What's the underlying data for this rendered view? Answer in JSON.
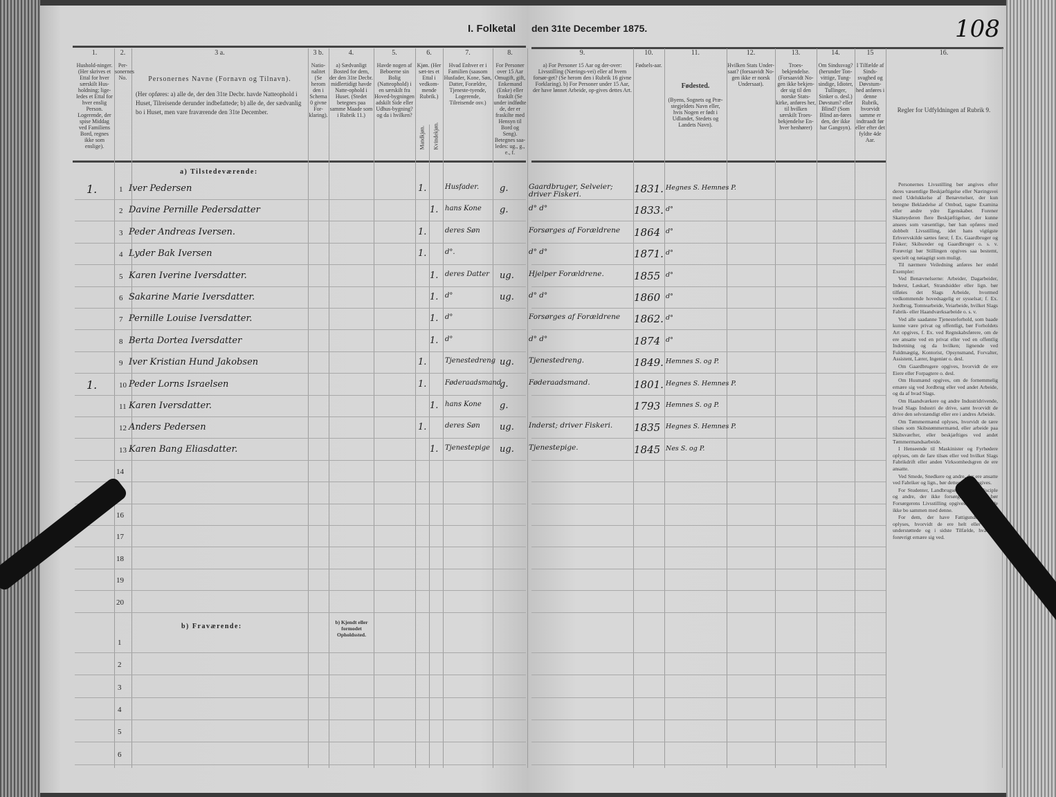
{
  "header": {
    "title_left": "I. Folketal",
    "title_right": "den 31te December 1875.",
    "page_number": "108"
  },
  "columns": {
    "c1": {
      "num": "1.",
      "text": "Hushold-ninger. (Her skrives et Ettal for hver særskilt Hus-holdning; lige-ledes et Ettal for hver enslig Person. Logerende, der spise Middag ved Familiens Bord, regnes ikke som enslige)."
    },
    "c2": {
      "num": "2.",
      "text": "Per-sonernes No."
    },
    "c3a": {
      "num": "3 a.",
      "title": "Personernes Navne (Fornavn og Tilnavn).",
      "text": "(Her opføres: a) alle de, der den 31te Decbr. havde Natteophold i Huset, Tilreisende derunder indbefattede; b) alle de, der sædvanlig bo i Huset, men vare fraværende den 31te December."
    },
    "c3b": {
      "num": "3 b.",
      "text": "Natio-nalitet (Se herom den i Schema 0 givne For-klaring)."
    },
    "c4": {
      "num": "4.",
      "text": "a) Sædvanligt Bosted for dem, der den 31te Decbr. midlertidigt havde Natte-ophold i Huset. (Stedet betegnes paa samme Maade som i Rubrik 11.)"
    },
    "c5": {
      "num": "5.",
      "text": "Havde nogen af Beboerne sin Bolig (Natteophold) i en særskilt fra Hoved-bygningen adskilt Side eller Udhus-bygning? og da i hvilken?"
    },
    "c6": {
      "num": "6.",
      "text": "Kjøn. (Her sæt-tes et Ettal i vedkom-mende Rubrik.)",
      "male": "Mandkjøn.",
      "female": "Kvindekjøn."
    },
    "c7": {
      "num": "7.",
      "text": "Hvad Enhver er i Familien (saasom Husfader, Kone, Søn, Datter, Forældre, Tjeneste-tyende, Logerende, Tilreisende osv.)"
    },
    "c8": {
      "num": "8.",
      "text": "For Personer over 15 Aar Omugift, gift, Enkemand (Enke) eller fraskilt (Se under indfødte de, der er fraskilte med Hensyn til Bord og Seng). Betegnes saa-ledes: ug., g., e., f."
    },
    "c9": {
      "num": "9.",
      "text": "a) For Personer 15 Aar og der-over: Livsstilling (Nærings-vei) eller af hvem forsør-get? (Se herom den i Rubrik 16 givne Forklaring). b) For Personer under 15 Aar, der have lønnet Arbeide, op-gives dettes Art."
    },
    "c10": {
      "num": "10.",
      "text": "Fødsels-aar."
    },
    "c11": {
      "num": "11.",
      "title": "Fødested.",
      "text": "(Byens, Sognets og Præ-stegjeldets Navn eller, hvis Nogen er født i Udlandet, Stedets og Landets Navn)."
    },
    "c12": {
      "num": "12.",
      "text": "Hvilken Stats Under-saat? (forsaavidt No-gen ikke er norsk Undersaat)."
    },
    "c13": {
      "num": "13.",
      "text": "Troes-bekjendelse. (Forsaavidt No-gen ikke bekjen-der sig til den norske Stats-kirke, anføres her, til hvilken særskilt Troes-bekjendelse En-hver henhører)"
    },
    "c14": {
      "num": "14.",
      "text": "Om Sindssvag? (herunder Ton-vittige, Tung-sindige, Idioter, Tullinger, Sinker o. desl.) Døvstum? eller Blind? (Som Blind an-føres den, der ikke har Gangsyn)."
    },
    "c15": {
      "num": "15",
      "text": "I Tilfælde af Sinds-svaghed og Døvstum-hed anføres i denne Rubrik, hvorvidt samme er indtraadt før eller efter det fyldte 4de Aar."
    },
    "c16": {
      "num": "16.",
      "text": "Regler for Udfyldningen af Rubrik 9."
    }
  },
  "sections": {
    "present": "a) Tilstedeværende:",
    "absent": "b) Fraværende:",
    "absent_place": "b) Kjendt eller formodet Opholdssted."
  },
  "persons": [
    {
      "no": "1",
      "household": "1.",
      "name": "Iver Pedersen",
      "male": "1.",
      "female": "",
      "role": "Husfader.",
      "marital": "g.",
      "occupation": "Gaardbruger, Selveier; driver Fiskeri.",
      "birth_year": "1831.",
      "birthplace": "Hegnes S. Hemnes P."
    },
    {
      "no": "2",
      "household": "",
      "name": "Davine Pernille Pedersdatter",
      "male": "",
      "female": "1.",
      "role": "hans Kone",
      "marital": "g.",
      "occupation": "d°   d°",
      "birth_year": "1833.",
      "birthplace": "d°"
    },
    {
      "no": "3",
      "household": "",
      "name": "Peder Andreas Iversen.",
      "male": "1.",
      "female": "",
      "role": "deres Søn",
      "marital": "",
      "occupation": "Forsørges af Forældrene",
      "birth_year": "1864",
      "birthplace": "d°"
    },
    {
      "no": "4",
      "household": "",
      "name": "Lyder Bak Iversen",
      "male": "1.",
      "female": "",
      "role": "d°.",
      "marital": "",
      "occupation": "d°   d°",
      "birth_year": "1871.",
      "birthplace": "d°"
    },
    {
      "no": "5",
      "household": "",
      "name": "Karen Iverine Iversdatter.",
      "male": "",
      "female": "1.",
      "role": "deres Datter",
      "marital": "ug.",
      "occupation": "Hjelper Forældrene.",
      "birth_year": "1855",
      "birthplace": "d°"
    },
    {
      "no": "6",
      "household": "",
      "name": "Sakarine Marie Iversdatter.",
      "male": "",
      "female": "1.",
      "role": "d°",
      "marital": "ug.",
      "occupation": "d°   d°",
      "birth_year": "1860",
      "birthplace": "d°"
    },
    {
      "no": "7",
      "household": "",
      "name": "Pernille Louise Iversdatter.",
      "male": "",
      "female": "1.",
      "role": "d°",
      "marital": "",
      "occupation": "Forsørges af Forældrene",
      "birth_year": "1862.",
      "birthplace": "d°"
    },
    {
      "no": "8",
      "household": "",
      "name": "Berta Dortea Iversdatter",
      "male": "",
      "female": "1.",
      "role": "d°",
      "marital": "",
      "occupation": "d°   d°",
      "birth_year": "1874",
      "birthplace": "d°"
    },
    {
      "no": "9",
      "household": "",
      "name": "Iver Kristian Hund Jakobsen",
      "male": "1.",
      "female": "",
      "role": "Tjenestedreng",
      "marital": "ug.",
      "occupation": "Tjenestedreng.",
      "birth_year": "1849.",
      "birthplace": "Hemnes S. og P."
    },
    {
      "no": "10",
      "household": "1.",
      "name": "Peder Lorns Israelsen",
      "male": "1.",
      "female": "",
      "role": "Føderaadsmand",
      "marital": "g.",
      "occupation": "Føderaadsmand.",
      "birth_year": "1801.",
      "birthplace": "Hegnes S. Hemnes P."
    },
    {
      "no": "11",
      "household": "",
      "name": "Karen Iversdatter.",
      "male": "",
      "female": "1.",
      "role": "hans Kone",
      "marital": "g.",
      "occupation": "",
      "birth_year": "1793",
      "birthplace": "Hemnes S. og P."
    },
    {
      "no": "12",
      "household": "",
      "name": "Anders Pedersen",
      "male": "1.",
      "female": "",
      "role": "deres Søn",
      "marital": "ug.",
      "occupation": "Inderst; driver Fiskeri.",
      "birth_year": "1835",
      "birthplace": "Hegnes S. Hemnes P."
    },
    {
      "no": "13",
      "household": "",
      "name": "Karen Bang Eliasdatter.",
      "male": "",
      "female": "1.",
      "role": "Tjenestepige",
      "marital": "ug.",
      "occupation": "Tjenestepige.",
      "birth_year": "1845",
      "birthplace": "Nes S. og P."
    }
  ],
  "empty_rows": [
    "14",
    "15",
    "16",
    "17",
    "18",
    "19",
    "20"
  ],
  "absent_rows": [
    "1",
    "2",
    "3",
    "4",
    "5",
    "6"
  ],
  "rules16": [
    "Personernes Livsstilling bør angives efter deres væsentlige Beskjæftigelse eller Næringsvei med Udelukkelse af Benævnelser, der kun betegne Beklædelse af Ombud, tagne Examina eller andre ydre Egenskaber. Forener Skatteyderen flere Beskjæftigelser, der kunne ansees som væsentlige, bør han opføres med dobbelt Livsstilling, idet hans vigtigste Erhvervskilde sættes først; f. Ex. Gaardbruger og Fisker; Skibsreder og Gaardbruger o. s. v. Forøvrigt bør Stillingen opgives saa bestemt, specielt og nøiagtigt som muligt.",
    "Til nærmere Veiledning anføres her endel Exempler:",
    "Ved Benævnelserne: Arbeider, Dagarbeider, Inderst, Løskarl, Strandsidder eller lign. bør tilføies det Slags Arbeide, hvormed vedkommende hovedsagelig er sysselsat; f. Ex. Jordbrug, Tomtearbeide, Veiarbeide, hvilket Slags Fabrik- eller Haandværksarbeide o. s. v.",
    "Ved alle saadanne Tjenesteforhold, som baade kunne være privat og offentligt, bør Forholdets Art opgives, f. Ex. ved Regnskabsførere, om de ere ansatte ved en privat eller ved en offentlig Indretning og da hvilken; lignende ved Fuldmægtig, Kontorist, Opsynsmand, Forvalter, Assistent, Lærer, Ingeniør o. desl.",
    "Om Gaardbrugere opgives, hvorvidt de ere Eiere eller Forpagtere o. desl.",
    "Om Husmænd opgives, om de fornemmelig ernære sig ved Jordbrug eller ved andet Arbeide, og da af hvad Slags.",
    "Om Haandværkere og andre Industridrivende, hvad Slags Industri de drive, samt hvorvidt de drive den selvstændigt eller ere i andres Arbeide.",
    "Om Tømmermænd oplyses, hvorvidt de tære tilsøs som Skibstømmermænd, eller arbeide paa Skibsværfter, eller beskjæftiges ved andet Tømmermandsarbeide.",
    "I Henseende til Maskinister og Fyrbødere oplyses, om de fare tilsøs eller ved hvilket Slags Fabrikdrift eller anden Virksomhedsgren de ere ansatte.",
    "Ved Smede, Snedkere og andre, der ere ansatte ved Fabriker og lign., bør dettes Navn opgives.",
    "For Studenter, Landbrugselever, Skoledisciple og andre, der ikke forsørge sig selv, bør Forsørgerens Livsstilling opgives, forsaavidt de ikke bo sammen med denne.",
    "For dem, der have Fattigunderstøttelse, oplyses, hvorvidt de ere helt eller delvis understøttede og i sidste Tilfælde, hvad de forøvrigt ernære sig ved."
  ],
  "colors": {
    "paper": "#d6d6d6",
    "ink": "#1a1a1a",
    "background": "#3a3a3a"
  }
}
